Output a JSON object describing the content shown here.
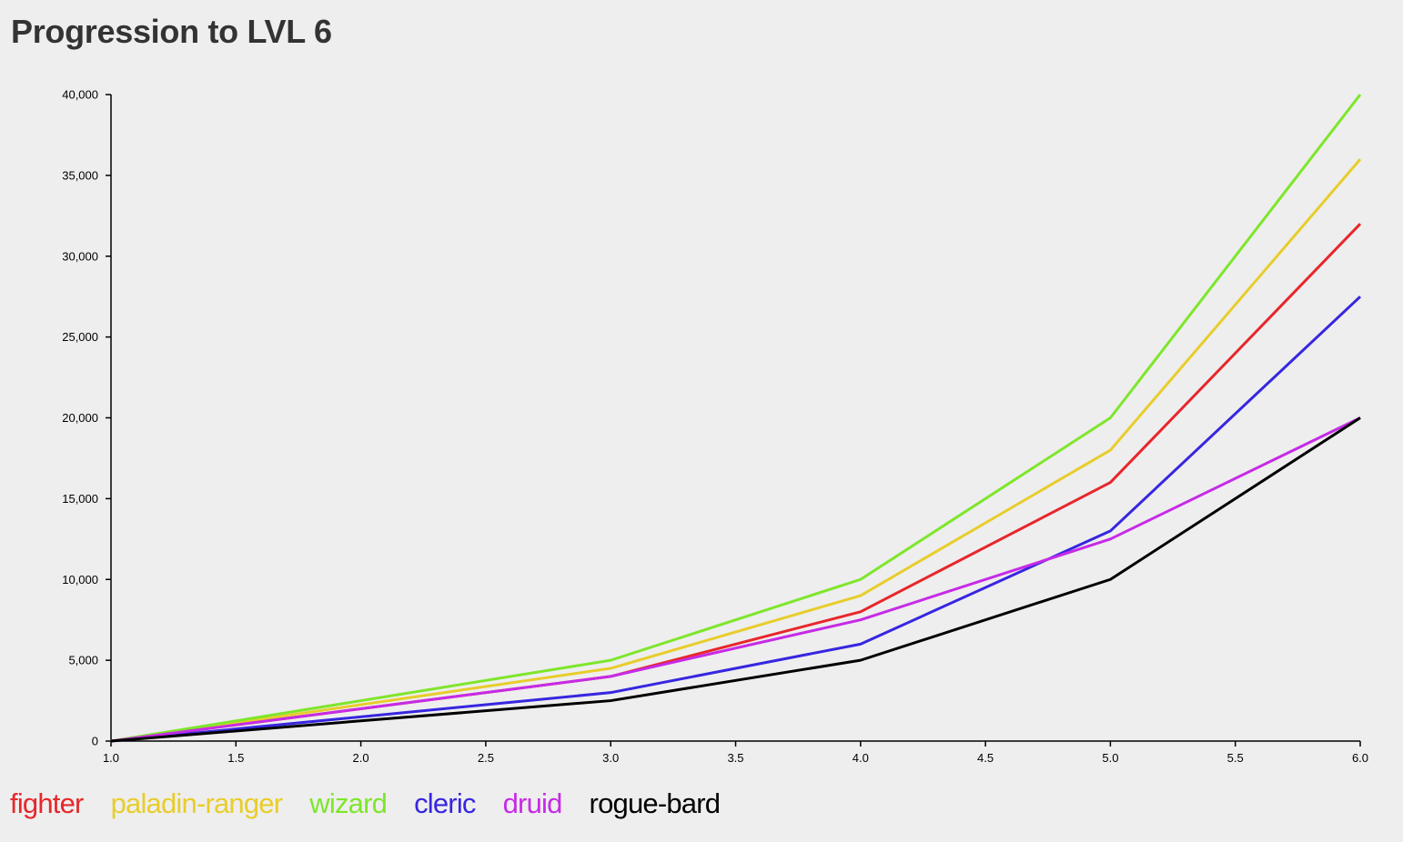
{
  "page": {
    "title": "Progression to LVL 6"
  },
  "chart_data": {
    "type": "line",
    "title": "Progression to LVL 6",
    "xlabel": "",
    "ylabel": "",
    "xlim": [
      1,
      6
    ],
    "ylim": [
      0,
      40000
    ],
    "x_ticks": [
      "1.0",
      "1.5",
      "2.0",
      "2.5",
      "3.0",
      "3.5",
      "4.0",
      "4.5",
      "5.0",
      "5.5",
      "6.0"
    ],
    "y_ticks": [
      "0",
      "5,000",
      "10,000",
      "15,000",
      "20,000",
      "25,000",
      "30,000",
      "35,000",
      "40,000"
    ],
    "grid": false,
    "legend_position": "bottom-left",
    "x": [
      1,
      3,
      4,
      5,
      6
    ],
    "series": [
      {
        "name": "fighter",
        "color": "#e8262b",
        "values": [
          0,
          4000,
          8000,
          16000,
          32000
        ]
      },
      {
        "name": "paladin-ranger",
        "color": "#e8cd2b",
        "values": [
          0,
          4500,
          9000,
          18000,
          36000
        ]
      },
      {
        "name": "wizard",
        "color": "#7ee62b",
        "values": [
          0,
          5000,
          10000,
          20000,
          40000
        ]
      },
      {
        "name": "cleric",
        "color": "#3726e0",
        "values": [
          0,
          3000,
          6000,
          13000,
          27500
        ]
      },
      {
        "name": "druid",
        "color": "#c62be6",
        "values": [
          0,
          4000,
          7500,
          12500,
          20000
        ]
      },
      {
        "name": "rogue-bard",
        "color": "#000000",
        "values": [
          0,
          2500,
          5000,
          10000,
          20000
        ]
      }
    ]
  }
}
